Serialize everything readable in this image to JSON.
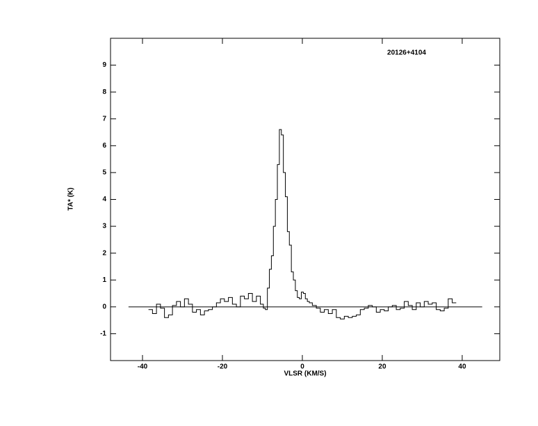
{
  "chart_data": {
    "type": "step",
    "annotation": "20126+4104",
    "xlabel": "VLSR (KM/S)",
    "ylabel": "TA* (K)",
    "xlim": [
      -48,
      49.4
    ],
    "ylim": [
      -2,
      10
    ],
    "xticks": [
      -40,
      -20,
      0,
      20,
      40
    ],
    "yticks": [
      -1,
      0,
      1,
      2,
      3,
      4,
      5,
      6,
      7,
      8,
      9
    ],
    "baseline": {
      "y": 0,
      "x": [
        -43.5,
        45
      ]
    },
    "series": [
      {
        "color": "#000000",
        "x": [
          -38,
          -37,
          -36,
          -35,
          -34,
          -33,
          -32,
          -31,
          -30,
          -29,
          -28,
          -27,
          -26,
          -25,
          -24,
          -23,
          -22,
          -21,
          -20,
          -19,
          -18,
          -17,
          -16,
          -15,
          -14,
          -13,
          -12,
          -11,
          -10,
          -9.5,
          -9,
          -8.5,
          -8,
          -7.5,
          -7,
          -6.5,
          -6,
          -5.5,
          -5,
          -4.5,
          -4,
          -3.5,
          -3,
          -2.5,
          -2,
          -1.5,
          -1,
          -0.5,
          0,
          0.5,
          1,
          1.5,
          2,
          3,
          4,
          5,
          6,
          7,
          8,
          9,
          10,
          11,
          12,
          13,
          14,
          15,
          16,
          17,
          18,
          19,
          20,
          21,
          22,
          23,
          24,
          25,
          26,
          27,
          28,
          29,
          30,
          31,
          32,
          33,
          34,
          35,
          36,
          37,
          38
        ],
        "values": [
          -0.1,
          -0.25,
          0.1,
          -0.05,
          -0.4,
          -0.3,
          0.05,
          0.2,
          0.0,
          0.3,
          0.1,
          -0.2,
          -0.1,
          -0.3,
          -0.15,
          -0.1,
          0.0,
          0.15,
          0.3,
          0.2,
          0.35,
          0.1,
          0.0,
          0.4,
          0.3,
          0.5,
          0.2,
          0.4,
          0.1,
          -0.05,
          -0.1,
          0.7,
          1.4,
          1.9,
          3.0,
          4.0,
          5.3,
          6.6,
          6.4,
          5.0,
          4.1,
          2.8,
          2.3,
          1.3,
          1.0,
          0.6,
          0.35,
          0.3,
          0.55,
          0.5,
          0.3,
          0.2,
          0.15,
          0.05,
          -0.05,
          -0.2,
          -0.1,
          -0.25,
          -0.1,
          -0.4,
          -0.45,
          -0.35,
          -0.4,
          -0.35,
          -0.3,
          -0.1,
          -0.05,
          0.05,
          0.0,
          -0.2,
          -0.1,
          -0.15,
          0.0,
          0.05,
          -0.1,
          -0.05,
          0.2,
          0.05,
          -0.1,
          0.15,
          0.0,
          0.2,
          0.1,
          0.15,
          -0.1,
          -0.15,
          -0.05,
          0.3,
          0.15
        ]
      }
    ]
  }
}
